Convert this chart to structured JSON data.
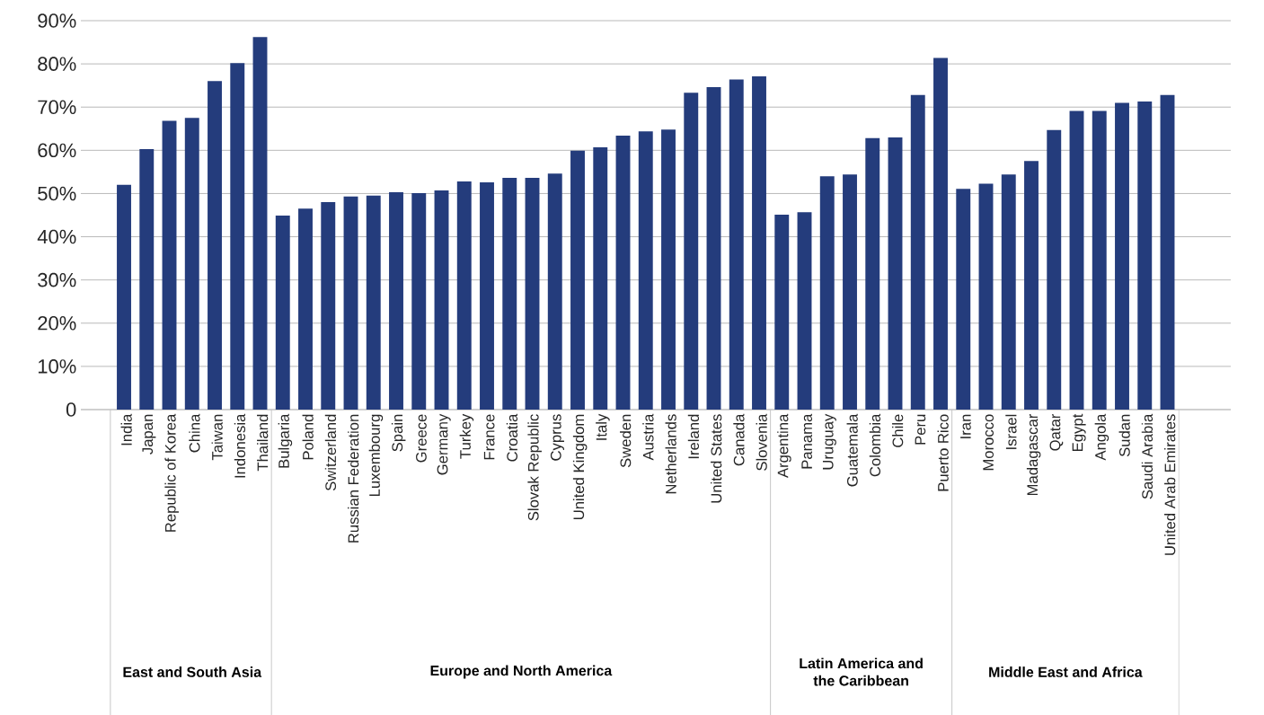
{
  "chart_data": {
    "type": "bar",
    "color": "#243c7c",
    "grid": "y",
    "ylim": [
      0,
      90
    ],
    "yticks": [
      {
        "value": 0,
        "label": "0"
      },
      {
        "value": 10,
        "label": "10%"
      },
      {
        "value": 20,
        "label": "20%"
      },
      {
        "value": 30,
        "label": "30%"
      },
      {
        "value": 40,
        "label": "40%"
      },
      {
        "value": 50,
        "label": "50%"
      },
      {
        "value": 60,
        "label": "60%"
      },
      {
        "value": 70,
        "label": "70%"
      },
      {
        "value": 80,
        "label": "80%"
      },
      {
        "value": 90,
        "label": "90%"
      }
    ],
    "categories": [
      "India",
      "Japan",
      "Republic of Korea",
      "China",
      "Taiwan",
      "Indonesia",
      "Thailand",
      "Bulgaria",
      "Poland",
      "Switzerland",
      "Russian Federation",
      "Luxembourg",
      "Spain",
      "Greece",
      "Germany",
      "Turkey",
      "France",
      "Croatia",
      "Slovak Republic",
      "Cyprus",
      "United Kingdom",
      "Italy",
      "Sweden",
      "Austria",
      "Netherlands",
      "Ireland",
      "United States",
      "Canada",
      "Slovenia",
      "Argentina",
      "Panama",
      "Uruguay",
      "Guatemala",
      "Colombia",
      "Chile",
      "Peru",
      "Puerto Rico",
      "Iran",
      "Morocco",
      "Israel",
      "Madagascar",
      "Qatar",
      "Egypt",
      "Angola",
      "Sudan",
      "Saudi Arabia",
      "United Arab Emirates"
    ],
    "values": [
      52,
      60.3,
      66.8,
      67.5,
      76,
      80.2,
      86.2,
      44.9,
      46.5,
      48,
      49.3,
      49.5,
      50.3,
      50.1,
      50.7,
      52.8,
      52.6,
      53.6,
      53.6,
      54.6,
      59.9,
      60.7,
      63.4,
      64.4,
      64.8,
      73.3,
      74.6,
      76.4,
      77.1,
      45.1,
      45.7,
      54,
      54.4,
      62.8,
      63,
      72.8,
      81.4,
      51.1,
      52.3,
      54.4,
      57.5,
      64.7,
      69.1,
      69.1,
      71,
      71.3,
      72.8
    ],
    "annotations": [
      "East and South Asia",
      "Europe and North America",
      "Latin America and the Caribbean",
      "Middle East and Africa"
    ]
  }
}
